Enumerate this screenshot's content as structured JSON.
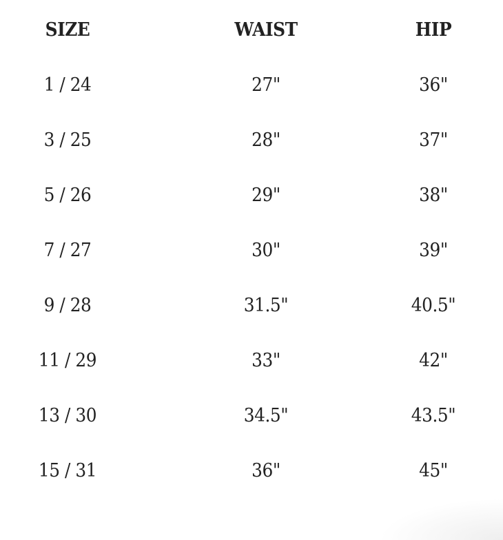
{
  "table": {
    "headers": [
      "SIZE",
      "WAIST",
      "HIP"
    ],
    "rows": [
      [
        "1 / 24",
        "27\"",
        "36\""
      ],
      [
        "3 / 25",
        "28\"",
        "37\""
      ],
      [
        "5 / 26",
        "29\"",
        "38\""
      ],
      [
        "7 / 27",
        "30\"",
        "39\""
      ],
      [
        "9 / 28",
        "31.5\"",
        "40.5\""
      ],
      [
        "11 / 29",
        "33\"",
        "42\""
      ],
      [
        "13 / 30",
        "34.5\"",
        "43.5\""
      ],
      [
        "15 / 31",
        "36\"",
        "45\""
      ]
    ]
  }
}
